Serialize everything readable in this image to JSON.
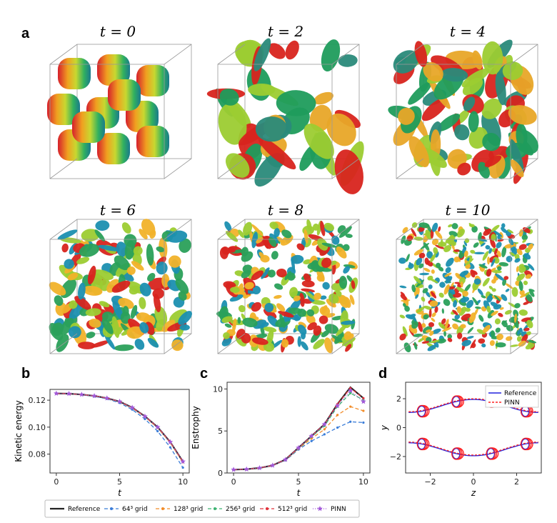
{
  "panel_labels": {
    "a": "a",
    "b": "b",
    "c": "c",
    "d": "d"
  },
  "cube_titles": [
    "t = 0",
    "t = 2",
    "t = 4",
    "t = 6",
    "t = 8",
    "t = 10"
  ],
  "colors": {
    "reference": "#222222",
    "grid64": "#3b7dd8",
    "grid128": "#f28c28",
    "grid256": "#3cb371",
    "grid512": "#e0303a",
    "pinn": "#a259d9",
    "ref_d": "#2222dd",
    "pinn_d": "#ff2222"
  },
  "legend_bottom": [
    "Reference",
    "64³ grid",
    "128³ grid",
    "256³ grid",
    "512³ grid",
    "PINN"
  ],
  "legend_d": [
    "Reference",
    "PINN"
  ],
  "chart_data": [
    {
      "id": "b",
      "type": "line",
      "xlabel": "t",
      "ylabel": "Kinetic energy",
      "xlim": [
        -0.5,
        10.5
      ],
      "ylim": [
        0.066,
        0.128
      ],
      "xticks": [
        0,
        5,
        10
      ],
      "yticks": [
        0.08,
        0.1,
        0.12
      ],
      "ytick_labels": [
        "0.08",
        "0.10",
        "0.12"
      ],
      "x": [
        0,
        1,
        2,
        3,
        4,
        5,
        6,
        7,
        8,
        9,
        10
      ],
      "series": [
        {
          "name": "Reference",
          "values": [
            0.125,
            0.1248,
            0.1242,
            0.1232,
            0.1215,
            0.119,
            0.1145,
            0.108,
            0.1,
            0.089,
            0.0745
          ]
        },
        {
          "name": "64³ grid",
          "values": [
            0.125,
            0.1247,
            0.124,
            0.1228,
            0.121,
            0.118,
            0.113,
            0.106,
            0.097,
            0.085,
            0.07
          ]
        },
        {
          "name": "128³ grid",
          "values": [
            0.125,
            0.1248,
            0.1242,
            0.1231,
            0.1214,
            0.1188,
            0.1142,
            0.1077,
            0.0995,
            0.0885,
            0.074
          ]
        },
        {
          "name": "256³ grid",
          "values": [
            0.125,
            0.1248,
            0.1242,
            0.1232,
            0.1215,
            0.119,
            0.1145,
            0.108,
            0.0998,
            0.0889,
            0.0744
          ]
        },
        {
          "name": "512³ grid",
          "values": [
            0.125,
            0.1248,
            0.1242,
            0.1232,
            0.1215,
            0.119,
            0.1145,
            0.108,
            0.1,
            0.089,
            0.0745
          ]
        },
        {
          "name": "PINN",
          "values": [
            0.125,
            0.1248,
            0.1242,
            0.1232,
            0.1215,
            0.119,
            0.1145,
            0.108,
            0.1,
            0.089,
            0.0745
          ]
        }
      ]
    },
    {
      "id": "c",
      "type": "line",
      "xlabel": "t",
      "ylabel": "Enstrophy",
      "xlim": [
        -0.5,
        10.5
      ],
      "ylim": [
        0,
        10.8
      ],
      "xticks": [
        0,
        5,
        10
      ],
      "yticks": [
        0,
        5,
        10
      ],
      "ytick_labels": [
        "0",
        "5",
        "10"
      ],
      "x": [
        0,
        1,
        2,
        3,
        4,
        5,
        6,
        7,
        8,
        9,
        10
      ],
      "series": [
        {
          "name": "Reference",
          "values": [
            0.4,
            0.45,
            0.6,
            0.9,
            1.6,
            3.0,
            4.4,
            5.8,
            8.2,
            10.2,
            8.9
          ]
        },
        {
          "name": "64³ grid",
          "values": [
            0.4,
            0.45,
            0.6,
            0.9,
            1.5,
            2.8,
            3.8,
            4.6,
            5.4,
            6.1,
            6.0
          ]
        },
        {
          "name": "128³ grid",
          "values": [
            0.4,
            0.45,
            0.6,
            0.9,
            1.55,
            2.9,
            4.1,
            5.2,
            6.9,
            7.9,
            7.4
          ]
        },
        {
          "name": "256³ grid",
          "values": [
            0.4,
            0.45,
            0.6,
            0.9,
            1.58,
            2.95,
            4.3,
            5.6,
            7.9,
            9.5,
            8.7
          ]
        },
        {
          "name": "512³ grid",
          "values": [
            0.4,
            0.45,
            0.6,
            0.9,
            1.6,
            3.0,
            4.4,
            5.8,
            8.2,
            10.1,
            8.9
          ]
        },
        {
          "name": "PINN",
          "values": [
            0.4,
            0.45,
            0.6,
            0.9,
            1.6,
            3.0,
            4.4,
            5.8,
            8.0,
            9.8,
            8.5
          ]
        }
      ]
    },
    {
      "id": "d",
      "type": "scatter",
      "xlabel": "z",
      "ylabel": "y",
      "xlim": [
        -3.14,
        3.14
      ],
      "ylim": [
        -3.14,
        3.14
      ],
      "xticks": [
        -2,
        0,
        2
      ],
      "yticks": [
        -2,
        0,
        2
      ],
      "ytick_labels": [
        "−2",
        "0",
        "2"
      ],
      "xtick_labels": [
        "−2",
        "0",
        "2"
      ],
      "rings_z": [
        -2.4,
        -0.8,
        0.8,
        2.4
      ],
      "rings_y": [
        1.5,
        -1.5
      ],
      "series": [
        {
          "name": "Reference"
        },
        {
          "name": "PINN"
        }
      ]
    }
  ]
}
